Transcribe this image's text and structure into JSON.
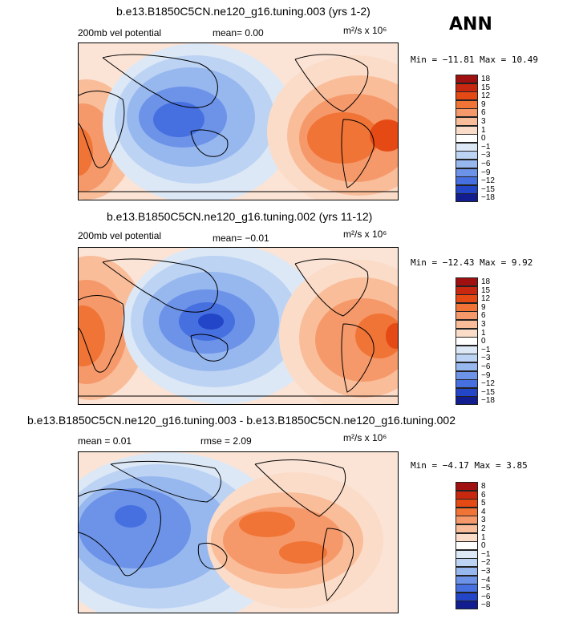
{
  "season_label": "ANN",
  "units": "m²/s x 10⁶",
  "panels": [
    {
      "title": "b.e13.B1850C5CN.ne120_g16.tuning.003 (yrs 1-2)",
      "left_text": "200mb vel potential",
      "mean_text": "mean=   0.00",
      "stats": "Min = −11.81  Max =   10.49",
      "levels": [
        "18",
        "15",
        "12",
        "9",
        "6",
        "3",
        "1",
        "0",
        "−1",
        "−3",
        "−6",
        "−9",
        "−12",
        "−15",
        "−18"
      ],
      "colors": [
        "#a01010",
        "#c8280f",
        "#e64a14",
        "#f07436",
        "#f6996a",
        "#f9bd9a",
        "#fbdcc8",
        "#ffffff",
        "#dce8f6",
        "#bcd3f3",
        "#97b7ef",
        "#6c93e8",
        "#4670e0",
        "#2346c8",
        "#121d90"
      ]
    },
    {
      "title": "b.e13.B1850C5CN.ne120_g16.tuning.002 (yrs 11-12)",
      "left_text": "200mb vel potential",
      "mean_text": "mean=  −0.01",
      "stats": "Min = −12.43  Max =    9.92",
      "levels": [
        "18",
        "15",
        "12",
        "9",
        "6",
        "3",
        "1",
        "0",
        "−1",
        "−3",
        "−6",
        "−9",
        "−12",
        "−15",
        "−18"
      ],
      "colors": [
        "#a01010",
        "#c8280f",
        "#e64a14",
        "#f07436",
        "#f6996a",
        "#f9bd9a",
        "#fbdcc8",
        "#ffffff",
        "#dce8f6",
        "#bcd3f3",
        "#97b7ef",
        "#6c93e8",
        "#4670e0",
        "#2346c8",
        "#121d90"
      ]
    },
    {
      "title": "b.e13.B1850C5CN.ne120_g16.tuning.003 - b.e13.B1850C5CN.ne120_g16.tuning.002",
      "left_text": "mean =   0.01",
      "mean_text": "rmse =   2.09",
      "stats": "Min =  −4.17  Max =    3.85",
      "levels": [
        "8",
        "6",
        "5",
        "4",
        "3",
        "2",
        "1",
        "0",
        "−1",
        "−2",
        "−3",
        "−4",
        "−5",
        "−6",
        "−8"
      ],
      "colors": [
        "#a01010",
        "#c8280f",
        "#e64a14",
        "#f07436",
        "#f6996a",
        "#f9bd9a",
        "#fbdcc8",
        "#ffffff",
        "#dce8f6",
        "#bcd3f3",
        "#97b7ef",
        "#6c93e8",
        "#4670e0",
        "#2346c8",
        "#121d90"
      ]
    }
  ]
}
